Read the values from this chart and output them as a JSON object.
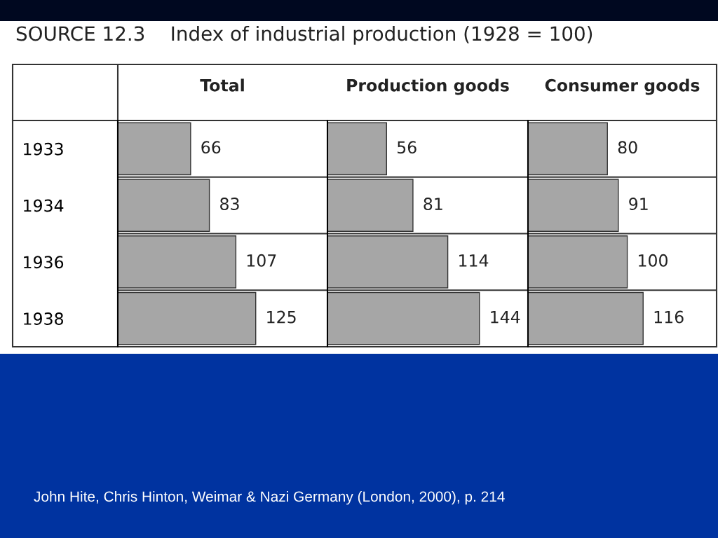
{
  "chart_data": [
    {
      "type": "bar",
      "orientation": "horizontal",
      "title": "Total",
      "categories": [
        "1933",
        "1934",
        "1936",
        "1938"
      ],
      "values": [
        66,
        83,
        107,
        125
      ],
      "color": "#a6a6a6",
      "xlim": [
        0,
        190
      ],
      "data_labels": true,
      "tick_labels": "y",
      "grid": false,
      "legend": false,
      "annotations": [
        "SOURCE 12.3    Index of industrial production (1928 = 100)",
        "John Hite, Chris Hinton, Weimar & Nazi Germany (London, 2000), p. 214"
      ]
    },
    {
      "type": "bar",
      "orientation": "horizontal",
      "title": "Production goods",
      "categories": [
        "1933",
        "1934",
        "1936",
        "1938"
      ],
      "values": [
        56,
        81,
        114,
        144
      ],
      "color": "#a6a6a6",
      "xlim": [
        0,
        190
      ],
      "data_labels": true,
      "tick_labels": false,
      "grid": false,
      "legend": false
    },
    {
      "type": "bar",
      "orientation": "horizontal",
      "title": "Consumer goods",
      "categories": [
        "1933",
        "1934",
        "1936",
        "1938"
      ],
      "values": [
        80,
        91,
        100,
        116
      ],
      "color": "#a6a6a6",
      "xlim": [
        0,
        190
      ],
      "data_labels": true,
      "tick_labels": false,
      "grid": false,
      "legend": false
    }
  ]
}
